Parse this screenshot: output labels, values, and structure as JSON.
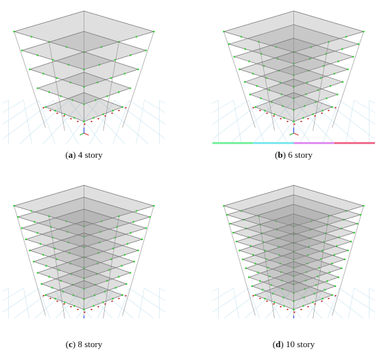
{
  "figure": {
    "panels": [
      {
        "id": "a",
        "letter": "a",
        "label": " 4 story",
        "stories": 4,
        "colorbar": false
      },
      {
        "id": "b",
        "letter": "b",
        "label": " 6 story",
        "stories": 6,
        "colorbar": true
      },
      {
        "id": "c",
        "letter": "c",
        "label": " 8 story",
        "stories": 8,
        "colorbar": true
      },
      {
        "id": "d",
        "letter": "d",
        "label": " 10 story",
        "stories": 10,
        "colorbar": true
      }
    ],
    "colors": {
      "slab_fill": "#8c8c8c",
      "slab_edge": "#6e6e6e",
      "column": "#9a9a9a",
      "grid": "#c6e3f1",
      "joint": "#33cc33",
      "support": "#cc3333",
      "axis_x": "#e03030",
      "axis_y": "#30b030",
      "axis_z": "#3050e0",
      "colorbar": [
        "#7cf0a0",
        "#80e8f0",
        "#e090f0",
        "#f07090"
      ]
    }
  }
}
